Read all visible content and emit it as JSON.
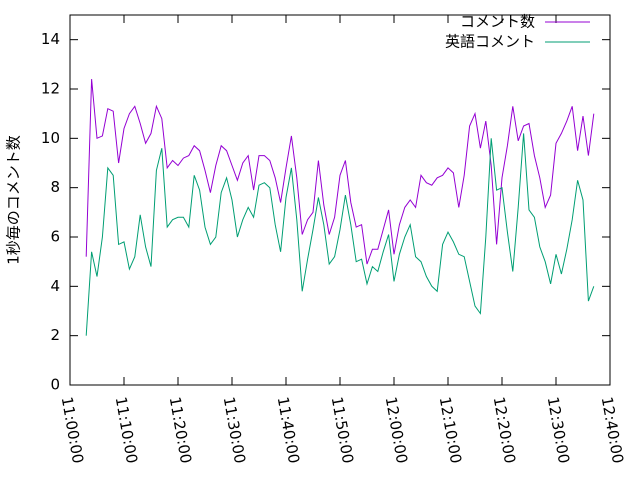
{
  "chart_data": {
    "type": "line",
    "ylabel": "1秒毎のコメント数",
    "xlim": [
      "11:00:00",
      "12:40:00"
    ],
    "xticks": [
      "11:00:00",
      "11:10:00",
      "11:20:00",
      "11:30:00",
      "11:40:00",
      "11:50:00",
      "12:00:00",
      "12:10:00",
      "12:20:00",
      "12:30:00",
      "12:40:00"
    ],
    "ylim": [
      0,
      15
    ],
    "yticks": [
      0,
      2,
      4,
      6,
      8,
      10,
      12,
      14
    ],
    "legend": "top-right",
    "x": [
      "11:03:00",
      "11:04:00",
      "11:05:00",
      "11:06:00",
      "11:07:00",
      "11:08:00",
      "11:09:00",
      "11:10:00",
      "11:11:00",
      "11:12:00",
      "11:13:00",
      "11:14:00",
      "11:15:00",
      "11:16:00",
      "11:17:00",
      "11:18:00",
      "11:19:00",
      "11:20:00",
      "11:21:00",
      "11:22:00",
      "11:23:00",
      "11:24:00",
      "11:25:00",
      "11:26:00",
      "11:27:00",
      "11:28:00",
      "11:29:00",
      "11:30:00",
      "11:31:00",
      "11:32:00",
      "11:33:00",
      "11:34:00",
      "11:35:00",
      "11:36:00",
      "11:37:00",
      "11:38:00",
      "11:39:00",
      "11:40:00",
      "11:41:00",
      "11:42:00",
      "11:43:00",
      "11:44:00",
      "11:45:00",
      "11:46:00",
      "11:47:00",
      "11:48:00",
      "11:49:00",
      "11:50:00",
      "11:51:00",
      "11:52:00",
      "11:53:00",
      "11:54:00",
      "11:55:00",
      "11:56:00",
      "11:57:00",
      "11:58:00",
      "11:59:00",
      "12:00:00",
      "12:01:00",
      "12:02:00",
      "12:03:00",
      "12:04:00",
      "12:05:00",
      "12:06:00",
      "12:07:00",
      "12:08:00",
      "12:09:00",
      "12:10:00",
      "12:11:00",
      "12:12:00",
      "12:13:00",
      "12:14:00",
      "12:15:00",
      "12:16:00",
      "12:17:00",
      "12:18:00",
      "12:19:00",
      "12:20:00",
      "12:21:00",
      "12:22:00",
      "12:23:00",
      "12:24:00",
      "12:25:00",
      "12:26:00",
      "12:27:00",
      "12:28:00",
      "12:29:00",
      "12:30:00",
      "12:31:00",
      "12:32:00",
      "12:33:00",
      "12:34:00",
      "12:35:00",
      "12:36:00",
      "12:37:00"
    ],
    "series": [
      {
        "name": "コメント数",
        "color": "#9400d3",
        "values": [
          5.2,
          12.4,
          10.0,
          10.1,
          11.2,
          11.1,
          9.0,
          10.4,
          11.0,
          11.3,
          10.6,
          9.8,
          10.2,
          11.3,
          10.8,
          8.8,
          9.1,
          8.9,
          9.2,
          9.3,
          9.7,
          9.5,
          8.7,
          7.8,
          8.9,
          9.7,
          9.5,
          8.9,
          8.3,
          9.0,
          9.3,
          7.9,
          9.3,
          9.3,
          9.1,
          8.4,
          7.4,
          8.8,
          10.1,
          8.4,
          6.1,
          6.7,
          7.0,
          9.1,
          7.3,
          6.1,
          6.8,
          8.5,
          9.1,
          7.4,
          6.4,
          6.5,
          4.9,
          5.5,
          5.5,
          6.3,
          7.1,
          5.3,
          6.5,
          7.2,
          7.5,
          7.2,
          8.5,
          8.2,
          8.1,
          8.4,
          8.5,
          8.8,
          8.6,
          7.2,
          8.5,
          10.5,
          11.0,
          9.6,
          10.7,
          8.9,
          5.7,
          8.4,
          9.7,
          11.3,
          9.9,
          10.5,
          10.6,
          9.3,
          8.4,
          7.2,
          7.7,
          9.8,
          10.2,
          10.7,
          11.3,
          9.5,
          10.9,
          9.3,
          11.0
        ]
      },
      {
        "name": "英語コメント",
        "color": "#009e73",
        "values": [
          2.0,
          5.4,
          4.4,
          6.0,
          8.8,
          8.5,
          5.7,
          5.8,
          4.7,
          5.2,
          6.9,
          5.6,
          4.8,
          8.7,
          9.6,
          6.4,
          6.7,
          6.8,
          6.8,
          6.4,
          8.5,
          7.9,
          6.4,
          5.7,
          6.0,
          7.8,
          8.4,
          7.5,
          6.0,
          6.7,
          7.2,
          6.8,
          8.1,
          8.2,
          8.0,
          6.5,
          5.4,
          7.6,
          8.8,
          6.7,
          3.8,
          5.1,
          6.3,
          7.6,
          6.5,
          4.9,
          5.2,
          6.3,
          7.7,
          6.5,
          5.0,
          5.1,
          4.1,
          4.8,
          4.6,
          5.4,
          6.1,
          4.2,
          5.3,
          6.0,
          6.5,
          5.2,
          5.0,
          4.4,
          4.0,
          3.8,
          5.7,
          6.2,
          5.8,
          5.3,
          5.2,
          4.2,
          3.2,
          2.9,
          6.0,
          10.0,
          7.9,
          8.0,
          6.2,
          4.6,
          7.2,
          10.2,
          7.1,
          6.8,
          5.6,
          5.0,
          4.1,
          5.3,
          4.5,
          5.5,
          6.7,
          8.3,
          7.5,
          3.4,
          4.0
        ]
      }
    ]
  }
}
